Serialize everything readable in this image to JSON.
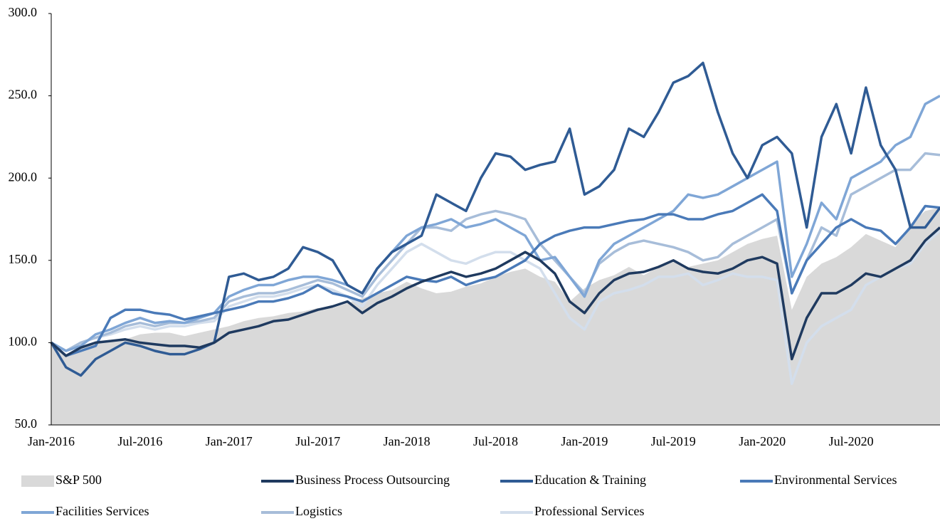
{
  "chart_data": {
    "type": "line",
    "categories": [
      "Jan-2016",
      null,
      null,
      null,
      null,
      null,
      "Jul-2016",
      null,
      null,
      null,
      null,
      null,
      "Jan-2017",
      null,
      null,
      null,
      null,
      null,
      "Jul-2017",
      null,
      null,
      null,
      null,
      null,
      "Jan-2018",
      null,
      null,
      null,
      null,
      null,
      "Jul-2018",
      null,
      null,
      null,
      null,
      null,
      "Jan-2019",
      null,
      null,
      null,
      null,
      null,
      "Jul-2019",
      null,
      null,
      null,
      null,
      null,
      "Jan-2020",
      null,
      null,
      null,
      null,
      null,
      "Jul-2020",
      null,
      null,
      null,
      null,
      null,
      null
    ],
    "ylim": [
      50,
      300
    ],
    "yticks": [
      {
        "value": 50,
        "label": "50.0"
      },
      {
        "value": 100,
        "label": "100.0"
      },
      {
        "value": 150,
        "label": "150.0"
      },
      {
        "value": 200,
        "label": "200.0"
      },
      {
        "value": 250,
        "label": "250.0"
      },
      {
        "value": 300,
        "label": "300.0"
      }
    ],
    "grid": false,
    "legend": "bottom",
    "series": [
      {
        "name": "S&P 500",
        "color": "#d9d9d9",
        "kind": "area",
        "values": [
          100,
          93,
          97,
          100,
          101,
          102,
          105,
          106,
          106,
          104,
          106,
          108,
          110,
          113,
          115,
          116,
          118,
          119,
          121,
          121,
          124,
          127,
          130,
          132,
          137,
          133,
          130,
          131,
          134,
          136,
          140,
          143,
          145,
          140,
          137,
          125,
          133,
          138,
          141,
          146,
          141,
          146,
          149,
          146,
          148,
          150,
          155,
          160,
          163,
          165,
          120,
          140,
          148,
          152,
          158,
          166,
          162,
          158,
          172,
          180,
          182
        ]
      },
      {
        "name": "Professional Services",
        "color": "#d3deec",
        "kind": "line",
        "values": [
          100,
          95,
          100,
          103,
          105,
          108,
          110,
          108,
          110,
          110,
          112,
          113,
          122,
          125,
          128,
          128,
          130,
          133,
          135,
          132,
          128,
          122,
          135,
          145,
          155,
          160,
          155,
          150,
          148,
          152,
          155,
          155,
          150,
          145,
          130,
          115,
          108,
          125,
          130,
          132,
          135,
          140,
          140,
          142,
          135,
          138,
          142,
          140,
          140,
          138,
          75,
          100,
          110,
          115,
          120,
          135,
          140,
          145,
          148,
          160,
          168
        ]
      },
      {
        "name": "Logistics",
        "color": "#a7bdd9",
        "kind": "line",
        "values": [
          100,
          95,
          100,
          103,
          106,
          110,
          112,
          110,
          112,
          112,
          113,
          115,
          125,
          128,
          130,
          130,
          132,
          135,
          138,
          136,
          132,
          128,
          140,
          150,
          160,
          170,
          170,
          168,
          175,
          178,
          180,
          178,
          175,
          160,
          150,
          140,
          130,
          148,
          155,
          160,
          162,
          160,
          158,
          155,
          150,
          152,
          160,
          165,
          170,
          175,
          130,
          150,
          170,
          165,
          190,
          195,
          200,
          205,
          205,
          215,
          214
        ]
      },
      {
        "name": "Facilities Services",
        "color": "#7fa6d6",
        "kind": "line",
        "values": [
          100,
          95,
          98,
          105,
          108,
          112,
          115,
          112,
          113,
          112,
          115,
          118,
          128,
          132,
          135,
          135,
          138,
          140,
          140,
          138,
          135,
          130,
          145,
          155,
          165,
          170,
          172,
          175,
          170,
          172,
          175,
          170,
          165,
          150,
          152,
          140,
          128,
          150,
          160,
          165,
          170,
          175,
          180,
          190,
          188,
          190,
          195,
          200,
          205,
          210,
          140,
          160,
          185,
          175,
          200,
          205,
          210,
          220,
          225,
          245,
          250
        ]
      },
      {
        "name": "Environmental Services",
        "color": "#4a7ab8",
        "kind": "line",
        "values": [
          100,
          92,
          95,
          98,
          115,
          120,
          120,
          118,
          117,
          114,
          116,
          118,
          120,
          122,
          125,
          125,
          127,
          130,
          135,
          130,
          128,
          125,
          130,
          135,
          140,
          138,
          137,
          140,
          135,
          138,
          140,
          145,
          150,
          160,
          165,
          168,
          170,
          170,
          172,
          174,
          175,
          178,
          178,
          175,
          175,
          178,
          180,
          185,
          190,
          180,
          130,
          150,
          160,
          170,
          175,
          170,
          168,
          160,
          170,
          183,
          182
        ]
      },
      {
        "name": "Education & Training",
        "color": "#2f5b94",
        "kind": "line",
        "values": [
          100,
          85,
          80,
          90,
          95,
          100,
          98,
          95,
          93,
          93,
          96,
          100,
          140,
          142,
          138,
          140,
          145,
          158,
          155,
          150,
          135,
          130,
          145,
          155,
          160,
          165,
          190,
          185,
          180,
          200,
          215,
          213,
          205,
          208,
          210,
          230,
          190,
          195,
          205,
          230,
          225,
          240,
          258,
          262,
          270,
          240,
          215,
          200,
          220,
          225,
          215,
          170,
          225,
          245,
          215,
          255,
          220,
          205,
          170,
          170,
          182
        ]
      },
      {
        "name": "Business Process Outsourcing",
        "color": "#1f3a5f",
        "kind": "line",
        "values": [
          100,
          92,
          97,
          100,
          101,
          102,
          100,
          99,
          98,
          98,
          97,
          100,
          106,
          108,
          110,
          113,
          114,
          117,
          120,
          122,
          125,
          118,
          124,
          128,
          133,
          137,
          140,
          143,
          140,
          142,
          145,
          150,
          155,
          150,
          142,
          125,
          118,
          130,
          138,
          142,
          143,
          146,
          150,
          145,
          143,
          142,
          145,
          150,
          152,
          148,
          90,
          115,
          130,
          130,
          135,
          142,
          140,
          145,
          150,
          162,
          170
        ]
      }
    ],
    "legend_order": [
      0,
      6,
      5,
      4,
      3,
      2,
      1
    ]
  }
}
